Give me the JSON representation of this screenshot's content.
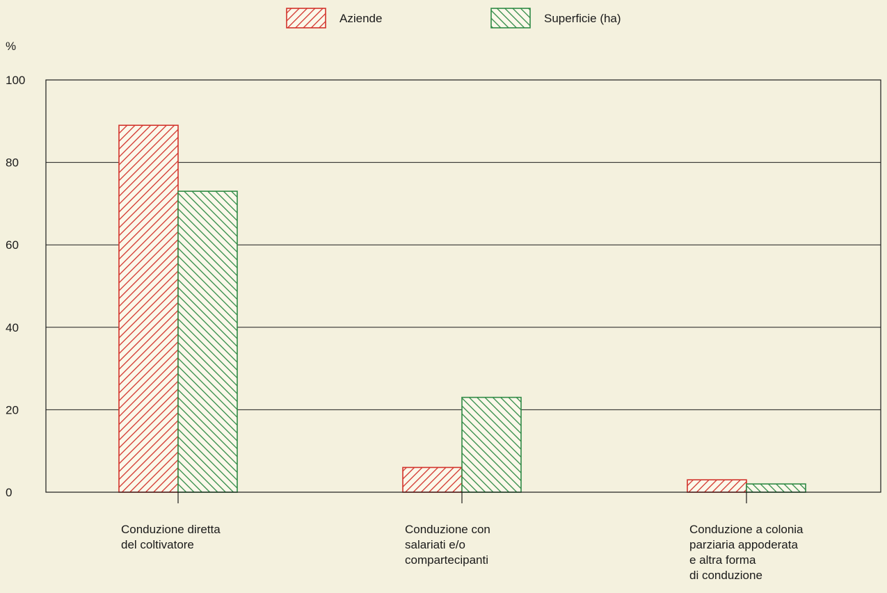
{
  "chart_data": {
    "type": "bar",
    "ylabel": "%",
    "ylim": [
      0,
      100
    ],
    "yticks": [
      "0",
      "20",
      "40",
      "60",
      "80",
      "100"
    ],
    "grid": true,
    "legend_position": "top-center",
    "categories": [
      [
        "Conduzione diretta",
        "del coltivatore"
      ],
      [
        "Conduzione con",
        "salariati e/o",
        "compartecipanti"
      ],
      [
        "Conduzione a colonia",
        "parziaria appoderata",
        "e altra forma",
        "di conduzione"
      ]
    ],
    "series": [
      {
        "name": "Aziende",
        "values": [
          89,
          6,
          3
        ],
        "color": "#d2332b",
        "hatch": "forward"
      },
      {
        "name": "Superficie (ha)",
        "values": [
          73,
          23,
          2
        ],
        "color": "#2f8a45",
        "hatch": "backward"
      }
    ]
  }
}
